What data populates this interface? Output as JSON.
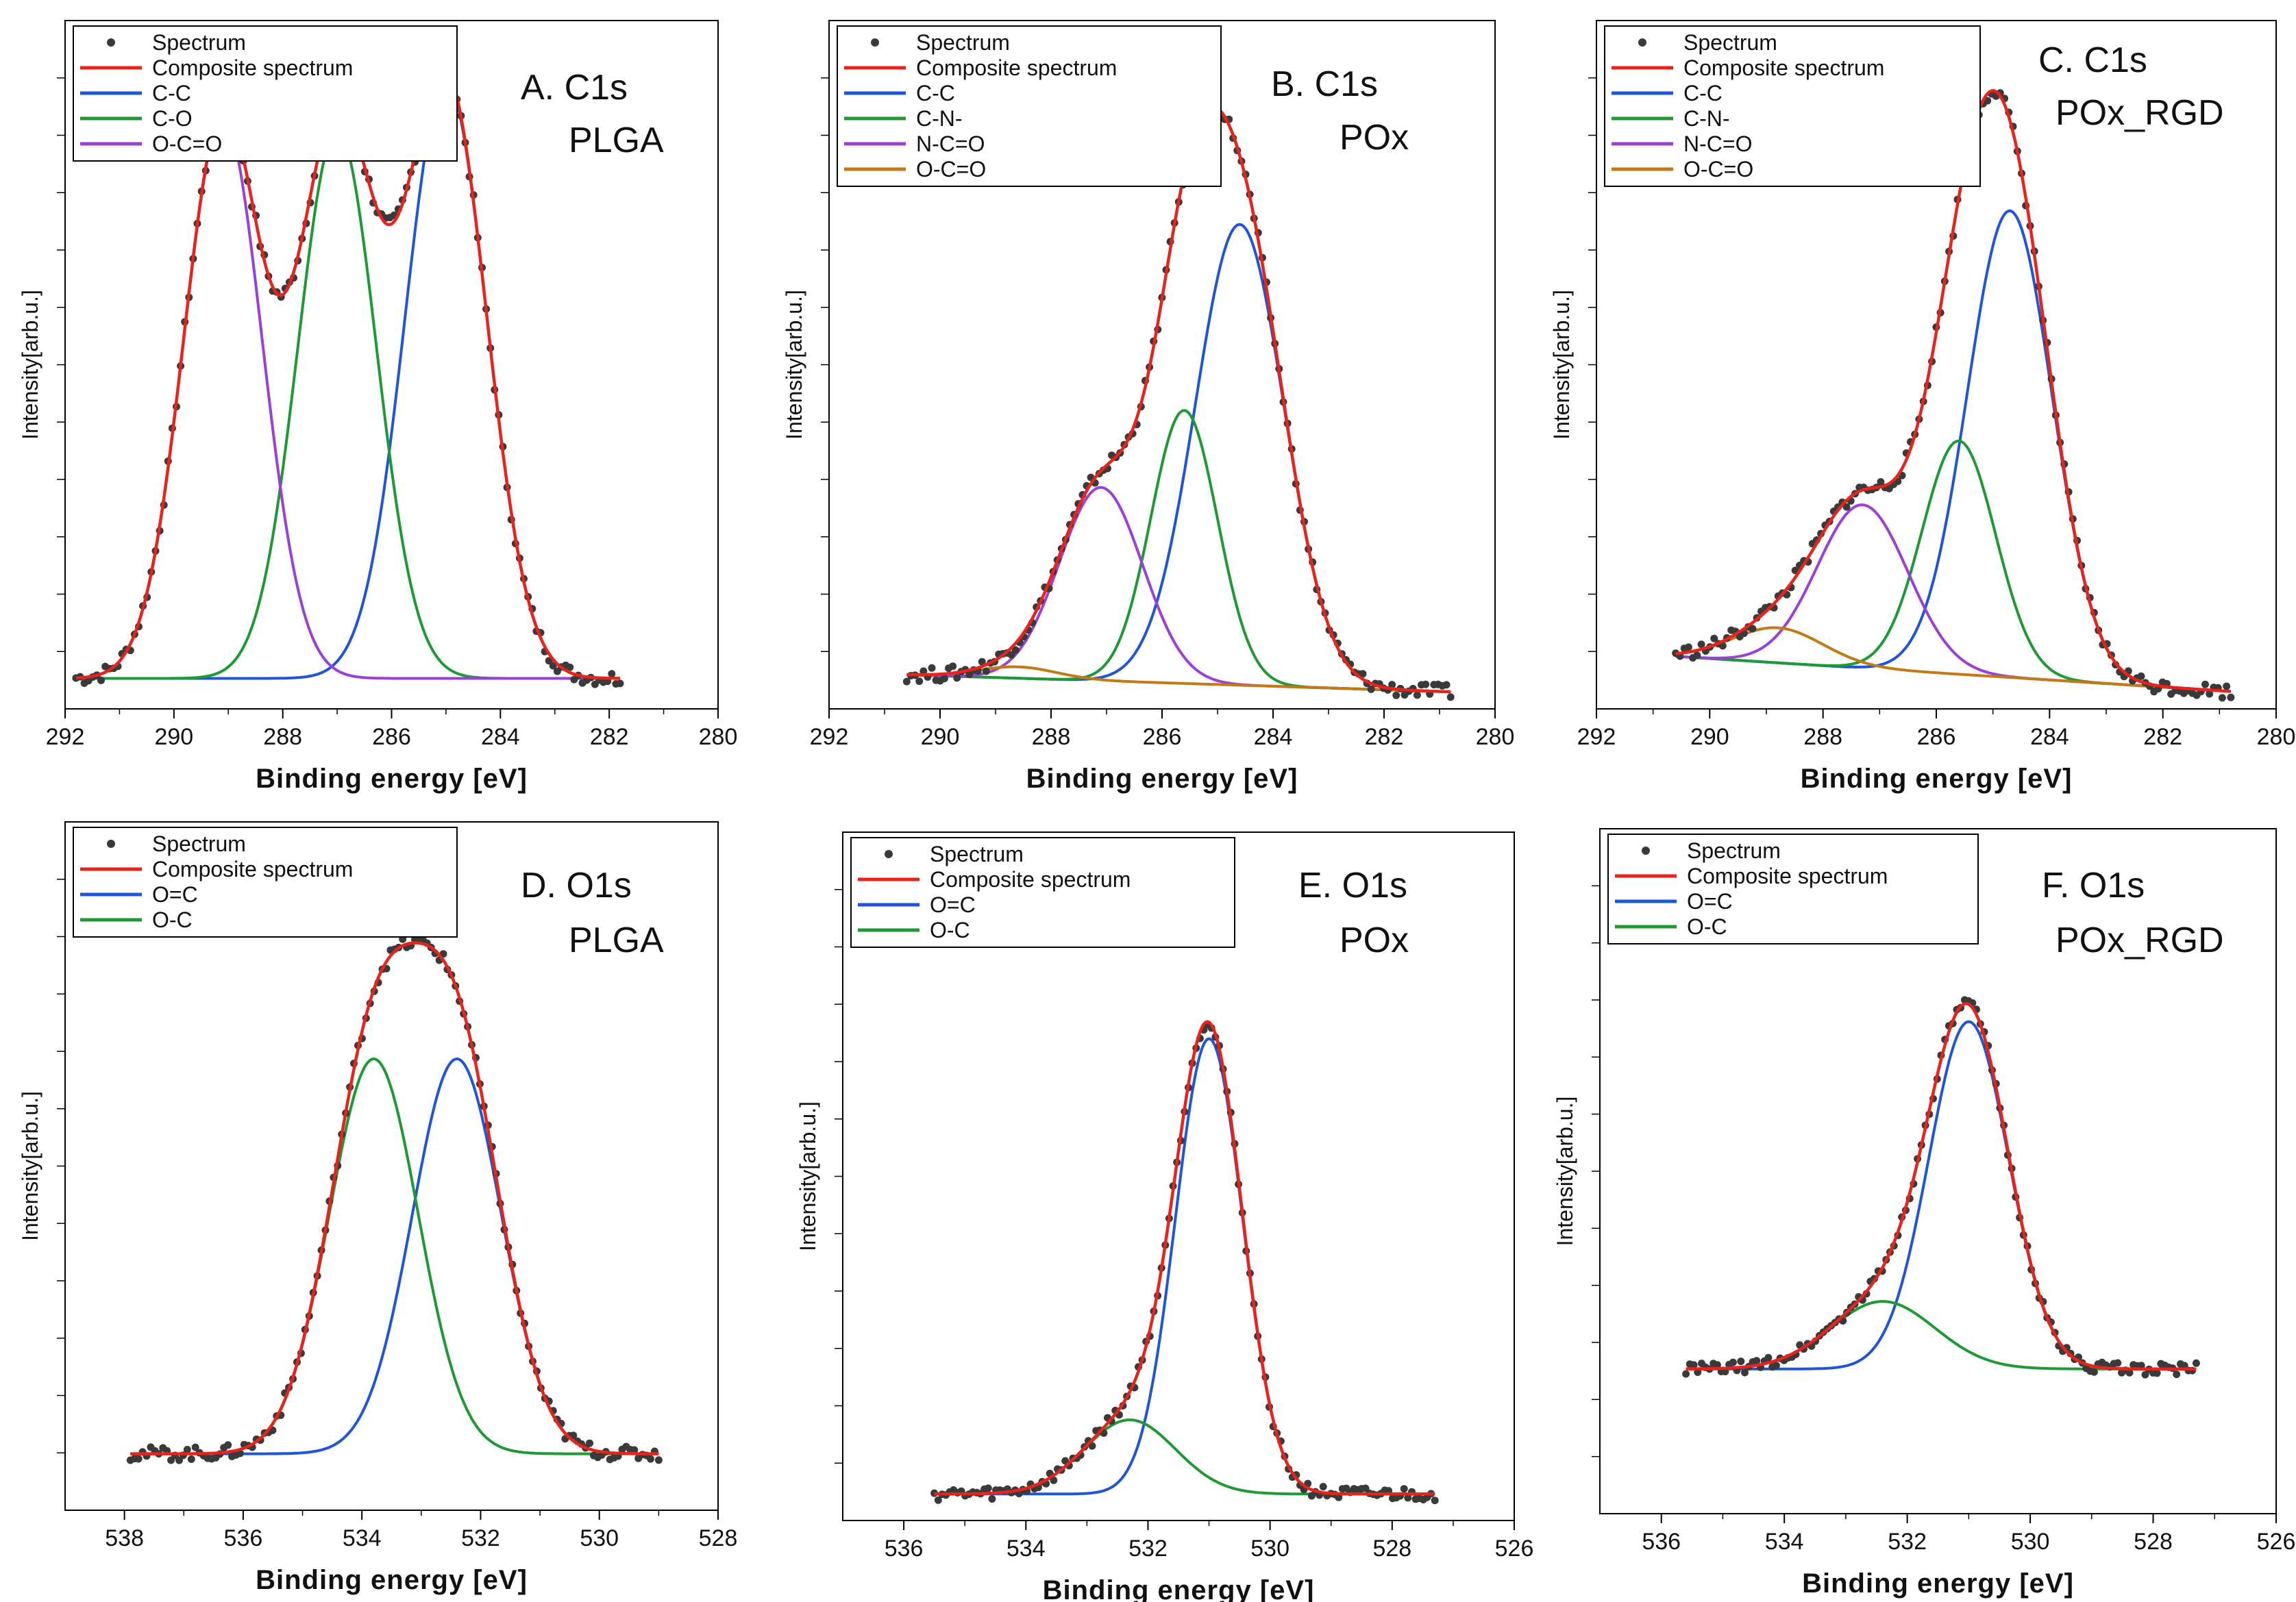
{
  "figure": {
    "description_free": true
  },
  "colors": {
    "spectrum": "#3a3a3a",
    "composite": "#e8231c",
    "blue": "#1f55d6",
    "green": "#1e9a34",
    "purple": "#9b3fd6",
    "orange": "#c47a14",
    "axis": "#000000"
  },
  "chart_data": [
    {
      "type": "line",
      "panel": "A",
      "title_line1": "A. C1s",
      "title_line2": "PLGA",
      "xlabel": "Binding energy [eV]",
      "ylabel": "Intensity[arb.u.]",
      "xlim": [
        292,
        280
      ],
      "ylim": [
        -0.05,
        1.08
      ],
      "xticks": [
        292,
        290,
        288,
        286,
        284,
        282,
        280
      ],
      "xrange_data": [
        291.8,
        281.8
      ],
      "baseline": [
        0.0,
        0.0
      ],
      "peaks": [
        {
          "name": "C-C",
          "color": "blue",
          "center": 285.0,
          "height": 0.98,
          "width": 0.75
        },
        {
          "name": "C-O",
          "color": "green",
          "center": 287.0,
          "height": 0.9,
          "width": 0.72
        },
        {
          "name": "O-C=O",
          "color": "purple",
          "center": 289.1,
          "height": 0.92,
          "width": 0.72
        }
      ],
      "legend": [
        "Spectrum",
        "Composite spectrum",
        "C-C",
        "C-O",
        "O-C=O"
      ],
      "legend_colors": [
        "spectrum",
        "composite",
        "blue",
        "green",
        "purple"
      ]
    },
    {
      "type": "line",
      "panel": "B",
      "title_line1": "B. C1s",
      "title_line2": "POx",
      "xlabel": "Binding energy [eV]",
      "ylabel": "Intensity[arb.u.]",
      "xlim": [
        292,
        280
      ],
      "ylim": [
        -0.03,
        1.18
      ],
      "xticks": [
        292,
        290,
        288,
        286,
        284,
        282,
        280
      ],
      "xrange_data": [
        290.6,
        280.8
      ],
      "baseline": [
        0.03,
        0.0
      ],
      "peaks": [
        {
          "name": "C-C",
          "color": "blue",
          "center": 284.6,
          "height": 0.81,
          "width": 0.8
        },
        {
          "name": "C-N-",
          "color": "green",
          "center": 285.6,
          "height": 0.48,
          "width": 0.6
        },
        {
          "name": "N-C=O",
          "color": "purple",
          "center": 287.1,
          "height": 0.34,
          "width": 0.75
        },
        {
          "name": "O-C=O",
          "color": "orange",
          "center": 288.6,
          "height": 0.02,
          "width": 0.7
        }
      ],
      "legend": [
        "Spectrum",
        "Composite spectrum",
        "C-C",
        "C-N-",
        "N-C=O",
        "O-C=O"
      ],
      "legend_colors": [
        "spectrum",
        "composite",
        "blue",
        "green",
        "purple",
        "orange"
      ]
    },
    {
      "type": "line",
      "panel": "C",
      "title_line1": "C. C1s",
      "title_line2": "POx_RGD",
      "xlabel": "Binding energy [eV]",
      "ylabel": "Intensity[arb.u.]",
      "xlim": [
        292,
        280
      ],
      "ylim": [
        -0.03,
        1.15
      ],
      "xticks": [
        292,
        290,
        288,
        286,
        284,
        282,
        280
      ],
      "xrange_data": [
        290.6,
        280.8
      ],
      "baseline": [
        0.06,
        0.0
      ],
      "peaks": [
        {
          "name": "C-C",
          "color": "blue",
          "center": 284.7,
          "height": 0.8,
          "width": 0.75
        },
        {
          "name": "C-N-",
          "color": "green",
          "center": 285.6,
          "height": 0.4,
          "width": 0.65
        },
        {
          "name": "N-C=O",
          "color": "purple",
          "center": 287.3,
          "height": 0.28,
          "width": 0.8
        },
        {
          "name": "O-C=O",
          "color": "orange",
          "center": 288.8,
          "height": 0.06,
          "width": 0.8
        }
      ],
      "legend": [
        "Spectrum",
        "Composite spectrum",
        "C-C",
        "C-N-",
        "N-C=O",
        "O-C=O"
      ],
      "legend_colors": [
        "spectrum",
        "composite",
        "blue",
        "green",
        "purple",
        "orange"
      ]
    },
    {
      "type": "line",
      "panel": "D",
      "title_line1": "D. O1s",
      "title_line2": "PLGA",
      "xlabel": "Binding energy [eV]",
      "ylabel": "Intensity[arb.u.]",
      "xlim": [
        539,
        528
      ],
      "ylim": [
        -0.1,
        1.12
      ],
      "xticks": [
        538,
        536,
        534,
        532,
        530,
        528
      ],
      "xrange_data": [
        537.9,
        529.0
      ],
      "baseline": [
        0.0,
        0.0
      ],
      "peaks": [
        {
          "name": "O=C",
          "color": "blue",
          "center": 532.4,
          "height": 0.7,
          "width": 0.75
        },
        {
          "name": "O-C",
          "color": "green",
          "center": 533.8,
          "height": 0.7,
          "width": 0.75
        }
      ],
      "legend": [
        "Spectrum",
        "Composite spectrum",
        "O=C",
        "O-C"
      ],
      "legend_colors": [
        "spectrum",
        "composite",
        "blue",
        "green"
      ]
    },
    {
      "type": "line",
      "panel": "E",
      "title_line1": "E. O1s",
      "title_line2": "POx",
      "xlabel": "Binding energy [eV]",
      "ylabel": "Intensity[arb.u.]",
      "xlim": [
        537,
        526
      ],
      "ylim": [
        -0.05,
        1.25
      ],
      "xticks": [
        536,
        534,
        532,
        530,
        528,
        526
      ],
      "xrange_data": [
        535.5,
        527.3
      ],
      "baseline": [
        0.0,
        0.0
      ],
      "peaks": [
        {
          "name": "O=C",
          "color": "blue",
          "center": 531.0,
          "height": 0.86,
          "width": 0.55
        },
        {
          "name": "O-C",
          "color": "green",
          "center": 532.3,
          "height": 0.14,
          "width": 0.75
        }
      ],
      "legend": [
        "Spectrum",
        "Composite spectrum",
        "O=C",
        "O-C"
      ],
      "legend_colors": [
        "spectrum",
        "composite",
        "blue",
        "green"
      ]
    },
    {
      "type": "line",
      "panel": "F",
      "title_line1": "F. O1s",
      "title_line2": "POx_RGD",
      "xlabel": "Binding energy [eV]",
      "ylabel": "Intensity[arb.u.]",
      "xlim": [
        537,
        526
      ],
      "ylim": [
        -0.3,
        1.12
      ],
      "xticks": [
        536,
        534,
        532,
        530,
        528,
        526
      ],
      "xrange_data": [
        535.6,
        527.3
      ],
      "baseline": [
        0.0,
        0.0
      ],
      "peaks": [
        {
          "name": "O=C",
          "color": "blue",
          "center": 531.0,
          "height": 0.72,
          "width": 0.65
        },
        {
          "name": "O-C",
          "color": "green",
          "center": 532.4,
          "height": 0.14,
          "width": 0.85
        }
      ],
      "legend": [
        "Spectrum",
        "Composite spectrum",
        "O=C",
        "O-C"
      ],
      "legend_colors": [
        "spectrum",
        "composite",
        "blue",
        "green"
      ]
    }
  ]
}
